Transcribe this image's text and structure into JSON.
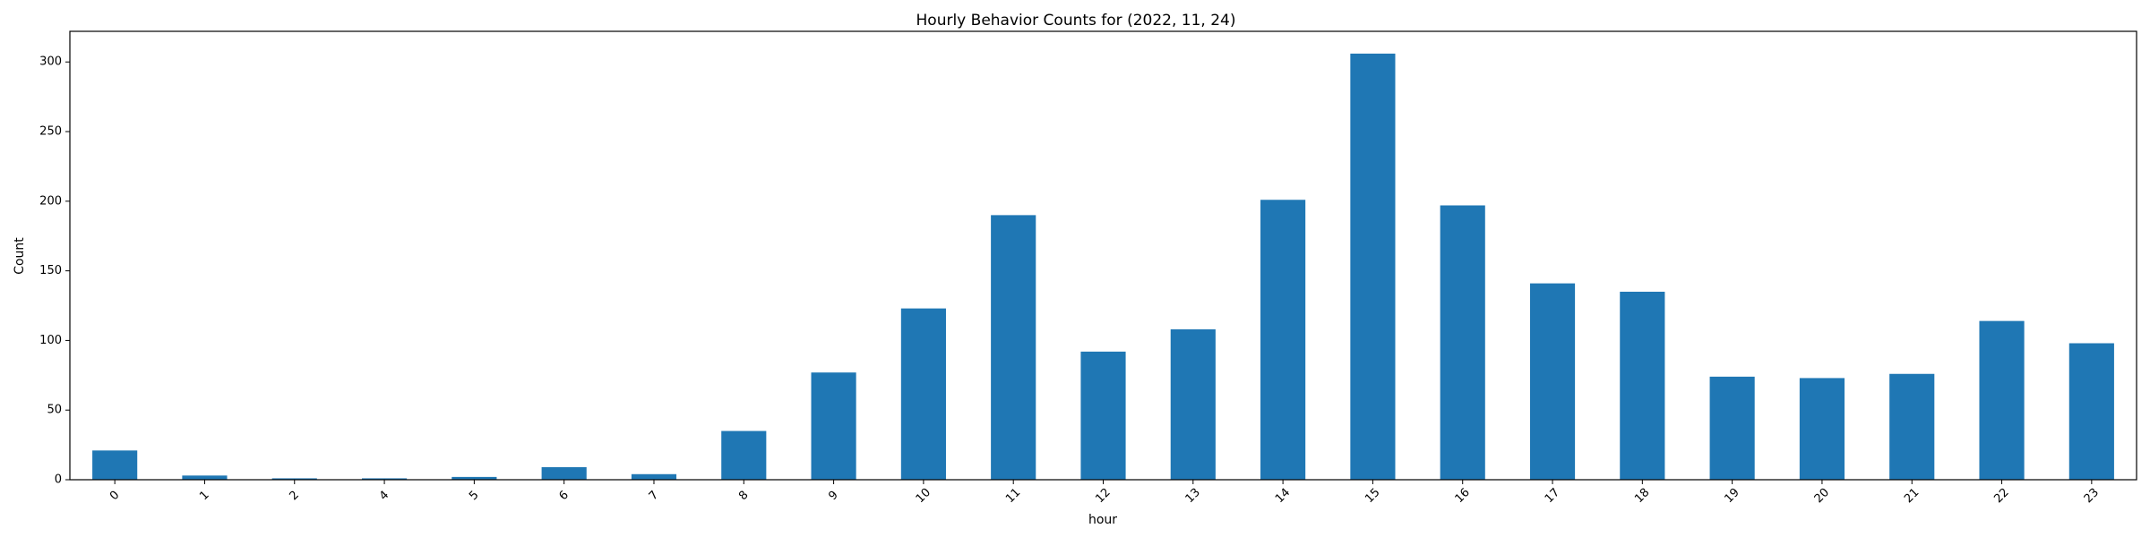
{
  "chart_data": {
    "type": "bar",
    "title": "Hourly Behavior Counts for (2022, 11, 24)",
    "xlabel": "hour",
    "ylabel": "Count",
    "categories": [
      "0",
      "1",
      "2",
      "4",
      "5",
      "6",
      "7",
      "8",
      "9",
      "10",
      "11",
      "12",
      "13",
      "14",
      "15",
      "16",
      "17",
      "18",
      "19",
      "20",
      "21",
      "22",
      "23"
    ],
    "values": [
      21,
      3,
      1,
      1,
      2,
      9,
      4,
      35,
      77,
      123,
      190,
      92,
      108,
      201,
      306,
      197,
      141,
      135,
      74,
      73,
      76,
      114,
      98
    ],
    "ylim": [
      0,
      322
    ],
    "yticks": [
      0,
      50,
      100,
      150,
      200,
      250,
      300
    ],
    "grid": false,
    "legend": "none",
    "bar_color": "#1f77b4"
  }
}
